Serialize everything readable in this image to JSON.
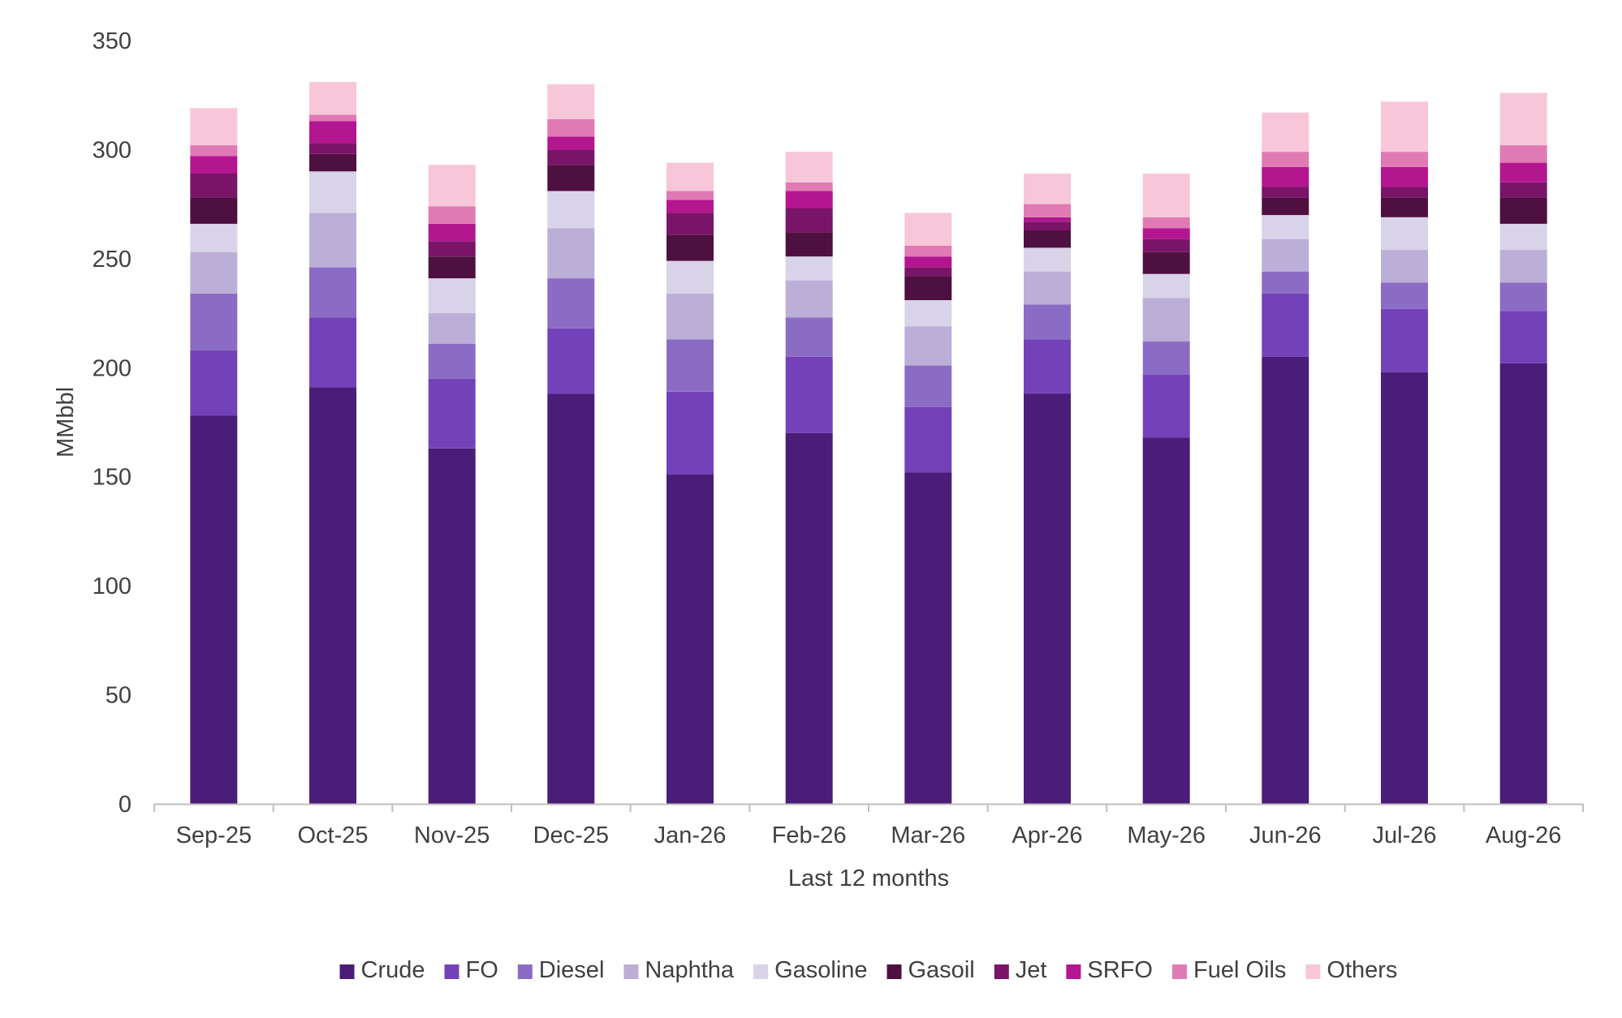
{
  "chart_data": {
    "type": "bar",
    "stacked": true,
    "xlabel": "Last 12 months",
    "ylabel": "MMbbl",
    "ylim": [
      0,
      350
    ],
    "yticks": [
      0,
      50,
      100,
      150,
      200,
      250,
      300,
      350
    ],
    "grid": false,
    "legend_position": "bottom",
    "categories": [
      "Sep-25",
      "Oct-25",
      "Nov-25",
      "Dec-25",
      "Jan-26",
      "Feb-26",
      "Mar-26",
      "Apr-26",
      "May-26",
      "Jun-26",
      "Jul-26",
      "Aug-26"
    ],
    "series": [
      {
        "name": "Crude",
        "color": "#4a1d78",
        "values": [
          178,
          191,
          163,
          188,
          151,
          170,
          152,
          188,
          168,
          205,
          198,
          202
        ]
      },
      {
        "name": "FO",
        "color": "#7442b8",
        "values": [
          30,
          32,
          32,
          30,
          38,
          35,
          30,
          25,
          29,
          29,
          29,
          24
        ]
      },
      {
        "name": "Diesel",
        "color": "#8b6cc4",
        "values": [
          26,
          23,
          16,
          23,
          24,
          18,
          19,
          16,
          15,
          10,
          12,
          13
        ]
      },
      {
        "name": "Naphtha",
        "color": "#bbaed7",
        "values": [
          19,
          25,
          14,
          23,
          21,
          17,
          18,
          15,
          20,
          15,
          15,
          15
        ]
      },
      {
        "name": "Gasoline",
        "color": "#d9d3e9",
        "values": [
          13,
          19,
          16,
          17,
          15,
          11,
          12,
          11,
          11,
          11,
          15,
          12
        ]
      },
      {
        "name": "Gasoil",
        "color": "#4e1040",
        "values": [
          12,
          8,
          10,
          12,
          12,
          11,
          11,
          8,
          10,
          8,
          9,
          12
        ]
      },
      {
        "name": "Jet",
        "color": "#7a1468",
        "values": [
          11,
          5,
          7,
          7,
          10,
          11,
          4,
          4,
          6,
          5,
          5,
          7
        ]
      },
      {
        "name": "SRFO",
        "color": "#b3168f",
        "values": [
          8,
          10,
          8,
          6,
          6,
          8,
          5,
          2,
          5,
          9,
          9,
          9
        ]
      },
      {
        "name": "Fuel Oils",
        "color": "#e07ab4",
        "values": [
          5,
          3,
          8,
          8,
          4,
          4,
          5,
          6,
          5,
          7,
          7,
          8
        ]
      },
      {
        "name": "Others",
        "color": "#f7c7d9",
        "values": [
          17,
          15,
          19,
          16,
          13,
          14,
          15,
          14,
          20,
          18,
          23,
          24
        ]
      }
    ]
  }
}
